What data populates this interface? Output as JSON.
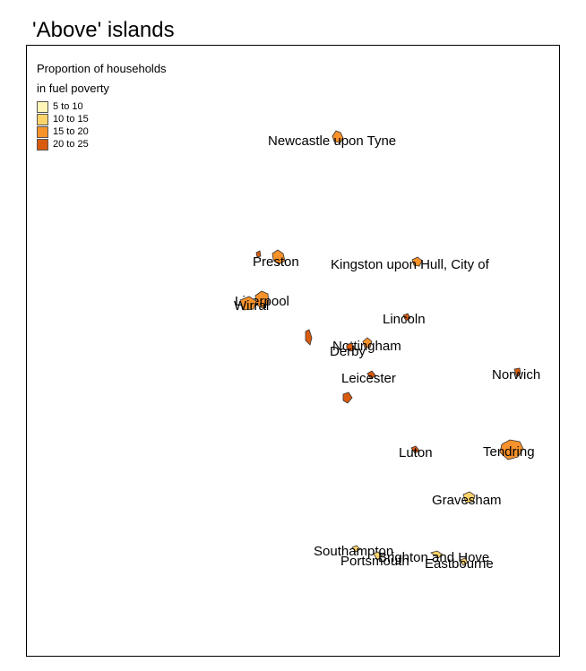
{
  "title": "'Above' islands",
  "legend": {
    "title_line1": "Proportion of households",
    "title_line2": "in fuel poverty",
    "classes": [
      {
        "label": "5 to 10",
        "color": "#fff5b8"
      },
      {
        "label": "10 to 15",
        "color": "#fdd36a"
      },
      {
        "label": "15 to 20",
        "color": "#f8922b"
      },
      {
        "label": "20 to 25",
        "color": "#d95b0e"
      }
    ]
  },
  "places": [
    {
      "name": "Newcastle upon Tyne",
      "fuel_class": 2
    },
    {
      "name": "Preston",
      "fuel_class": 2
    },
    {
      "name": "Kingston upon Hull, City of",
      "fuel_class": 2
    },
    {
      "name": "Liverpool",
      "fuel_class": 2
    },
    {
      "name": "Wirral",
      "fuel_class": 2
    },
    {
      "name": "Lincoln",
      "fuel_class": 3
    },
    {
      "name": "Nottingham",
      "fuel_class": 2
    },
    {
      "name": "Derby",
      "fuel_class": 3
    },
    {
      "name": "Leicester",
      "fuel_class": 3
    },
    {
      "name": "Norwich",
      "fuel_class": 3
    },
    {
      "name": "Luton",
      "fuel_class": 3
    },
    {
      "name": "Tendring",
      "fuel_class": 2
    },
    {
      "name": "Gravesham",
      "fuel_class": 1
    },
    {
      "name": "Southampton",
      "fuel_class": 1
    },
    {
      "name": "Portsmouth",
      "fuel_class": 1
    },
    {
      "name": "Brighton and Hove",
      "fuel_class": 1
    },
    {
      "name": "Eastbourne",
      "fuel_class": 1
    }
  ],
  "unlabeled_shapes": [
    {
      "fuel_class": 3
    },
    {
      "fuel_class": 3
    },
    {
      "fuel_class": 3
    }
  ]
}
